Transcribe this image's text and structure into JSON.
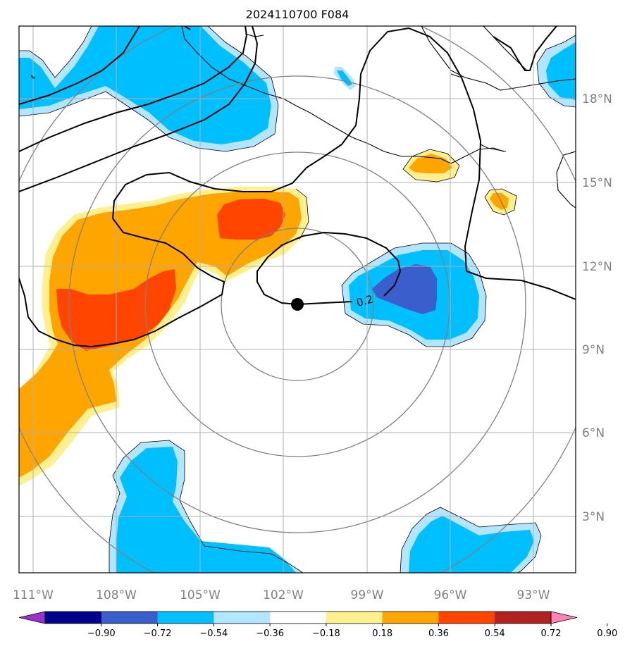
{
  "map": {
    "title": "2024110700 F084",
    "lon_labels": [
      "111°W",
      "108°W",
      "105°W",
      "102°W",
      "99°W",
      "96°W",
      "93°W"
    ],
    "lat_labels": [
      "18°N",
      "15°N",
      "12°N",
      "9°N",
      "6°N",
      "3°N"
    ],
    "center": {
      "lon": -101.5,
      "lat": 10.5
    },
    "contour_label": "0.2",
    "colorbar": {
      "ticks": [
        "−0.90",
        "−0.72",
        "−0.54",
        "−0.36",
        "−0.18",
        "0.18",
        "0.36",
        "0.54",
        "0.72",
        "0.90"
      ],
      "colors": [
        "#9a32cd",
        "#00008b",
        "#3a5fcd",
        "#00bfff",
        "#b2e5ff",
        "#ffffff",
        "#fff08f",
        "#ffa500",
        "#ff4500",
        "#b22222",
        "#ff83b4"
      ]
    },
    "fill_colors": {
      "pos_light": "#fff08f",
      "pos_mid": "#ffa500",
      "pos_strong": "#ff4500",
      "neg_light": "#b2e5ff",
      "neg_mid": "#00bfff",
      "neg_strong": "#3a5fcd"
    }
  }
}
